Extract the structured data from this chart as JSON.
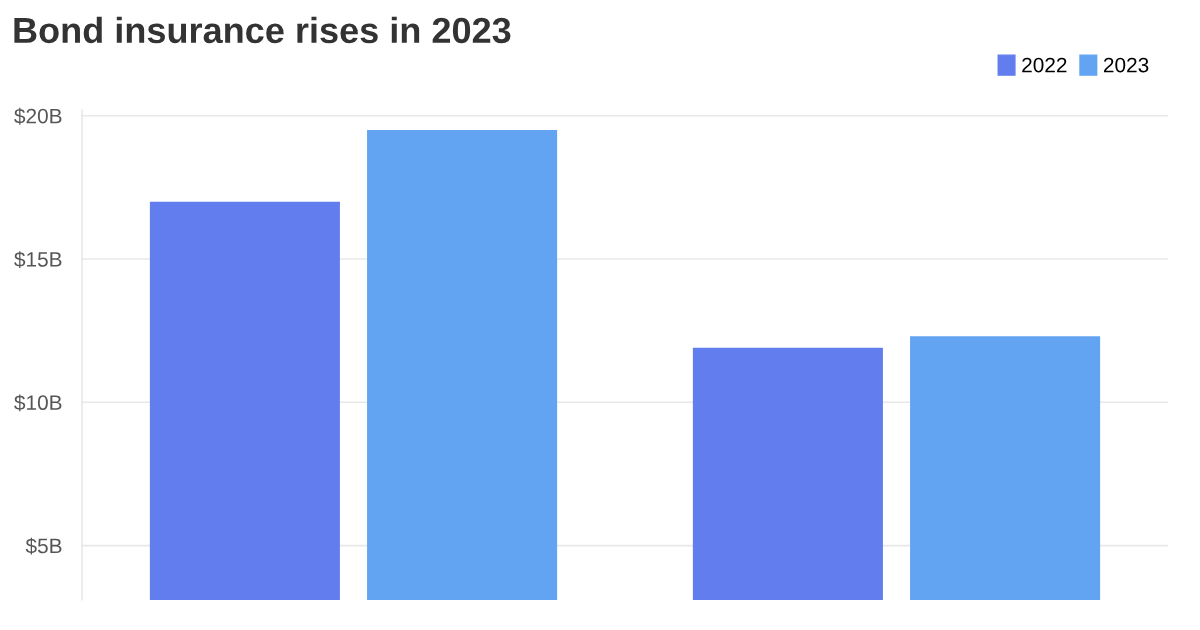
{
  "chart_data": {
    "type": "bar",
    "title": "Bond insurance rises in 2023",
    "categories": [
      null,
      null
    ],
    "series": [
      {
        "name": "2022",
        "color": "#627ded",
        "values": [
          17.0,
          11.9
        ]
      },
      {
        "name": "2023",
        "color": "#62a3f2",
        "values": [
          19.5,
          12.3
        ]
      }
    ],
    "ylim": [
      3.1,
      20.2
    ],
    "yticks": [
      {
        "value": 5,
        "label": "$5B"
      },
      {
        "value": 10,
        "label": "$10B"
      },
      {
        "value": 15,
        "label": "$15B"
      },
      {
        "value": 20,
        "label": "$20B"
      }
    ],
    "grid": "y",
    "legend": "top right"
  }
}
